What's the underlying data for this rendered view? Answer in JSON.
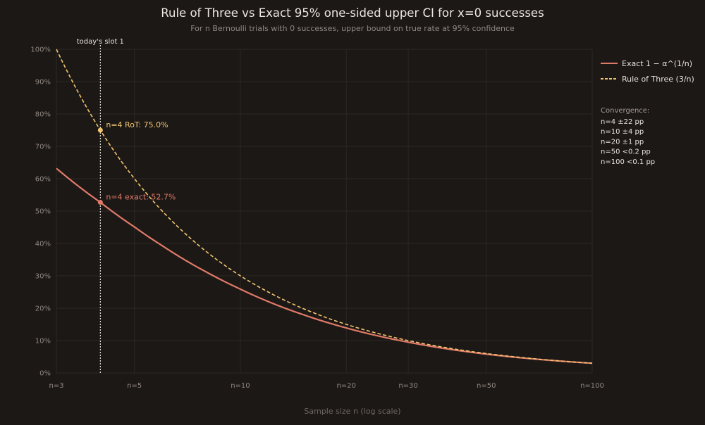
{
  "chart_data": {
    "type": "line",
    "title": "Rule of Three vs Exact 95% one-sided upper CI for x=0 successes",
    "subtitle": "For n Bernoulli trials with 0 successes, upper bound on true rate at 95% confidence",
    "xlabel": "Sample size n (log scale)",
    "ylabel": "",
    "x_scale": "log",
    "xlim": [
      3,
      100
    ],
    "ylim": [
      0,
      100
    ],
    "x_ticks": [
      3,
      5,
      10,
      20,
      30,
      50,
      100
    ],
    "x_tick_labels": [
      "n=3",
      "n=5",
      "n=10",
      "n=20",
      "n=30",
      "n=50",
      "n=100"
    ],
    "y_ticks": [
      0,
      10,
      20,
      30,
      40,
      50,
      60,
      70,
      80,
      90,
      100
    ],
    "y_tick_labels": [
      "0%",
      "10%",
      "20%",
      "30%",
      "40%",
      "50%",
      "60%",
      "70%",
      "80%",
      "90%",
      "100%"
    ],
    "grid": true,
    "legend_position": "right",
    "series": [
      {
        "name": "Exact 1 − α^(1/n)",
        "color": "#e07a68",
        "style": "solid",
        "x": [
          3,
          4,
          5,
          6,
          8,
          10,
          15,
          20,
          30,
          50,
          100
        ],
        "values": [
          63.2,
          52.7,
          45.1,
          39.3,
          31.2,
          25.9,
          18.1,
          13.9,
          9.5,
          5.8,
          3.0
        ]
      },
      {
        "name": "Rule of Three (3/n)",
        "color": "#f2c46e",
        "style": "dashed",
        "x": [
          3,
          4,
          5,
          6,
          8,
          10,
          15,
          20,
          30,
          50,
          100
        ],
        "values": [
          100,
          75,
          60,
          50,
          37.5,
          30,
          20,
          15,
          10,
          6,
          3
        ]
      }
    ],
    "marker": {
      "label": "today's slot 1",
      "x": 4,
      "color": "#e8e2dc"
    },
    "annotations": [
      {
        "text": "n=4 RoT: 75.0%",
        "x": 4,
        "y": 75.0,
        "color": "#f2c46e"
      },
      {
        "text": "n=4 exact: 52.7%",
        "x": 4,
        "y": 52.7,
        "color": "#e07a68"
      }
    ],
    "convergence": {
      "title": "Convergence:",
      "lines": [
        "n=4 ±22 pp",
        "n=10 ±4 pp",
        "n=20 ±1 pp",
        "n=50 <0.2 pp",
        "n=100 <0.1 pp"
      ]
    }
  }
}
